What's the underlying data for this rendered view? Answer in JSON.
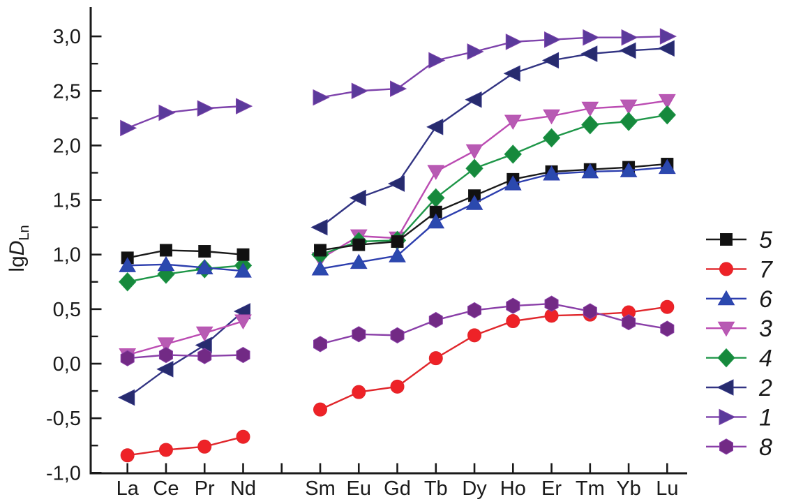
{
  "figure": {
    "background": "#ffffff"
  },
  "chart_data": {
    "type": "line",
    "title": "",
    "ylabel": {
      "prefix": "lg",
      "symbol": "D",
      "subscript": "Ln"
    },
    "xlabel": "",
    "categories": [
      "La",
      "Ce",
      "Pr",
      "Nd",
      "Sm",
      "Eu",
      "Gd",
      "Tb",
      "Dy",
      "Ho",
      "Er",
      "Tm",
      "Yb",
      "Lu"
    ],
    "category_slots": [
      1,
      2,
      3,
      4,
      6,
      7,
      8,
      9,
      10,
      11,
      12,
      13,
      14,
      15
    ],
    "gap_slot": 5,
    "ylim": [
      -1.0,
      3.27
    ],
    "ytick_values": [
      3.0,
      2.5,
      2.0,
      1.5,
      1.0,
      0.5,
      0.0,
      -0.5,
      -1.0
    ],
    "ytick_labels": [
      "3,0",
      "2,5",
      "2,0",
      "1,5",
      "1,0",
      "0,5",
      "0,0",
      "-0,5",
      "-1,0"
    ],
    "yminor_tick_values": [
      2.75,
      2.25,
      1.75,
      1.25,
      0.75,
      0.25,
      -0.25,
      -0.75
    ],
    "grid": "off",
    "legend_position": "right",
    "legend_order": [
      "5",
      "7",
      "6",
      "3",
      "4",
      "2",
      "1",
      "8"
    ],
    "series": [
      {
        "id": "5",
        "marker": "square",
        "line_color": "#1a1a1a",
        "fill_color": "#111111",
        "values": [
          0.97,
          1.04,
          1.03,
          1.0,
          1.04,
          1.09,
          1.12,
          1.39,
          1.54,
          1.69,
          1.76,
          1.78,
          1.8,
          1.83
        ]
      },
      {
        "id": "7",
        "marker": "circle",
        "line_color": "#e0262b",
        "fill_color": "#ee2227",
        "values": [
          -0.84,
          -0.79,
          -0.76,
          -0.67,
          -0.42,
          -0.26,
          -0.21,
          0.05,
          0.26,
          0.39,
          0.44,
          0.45,
          0.47,
          0.52
        ]
      },
      {
        "id": "6",
        "marker": "triangle-up",
        "line_color": "#2c3eae",
        "fill_color": "#2b49ae",
        "values": [
          0.9,
          0.91,
          0.88,
          0.85,
          0.87,
          0.93,
          0.99,
          1.3,
          1.47,
          1.65,
          1.74,
          1.76,
          1.77,
          1.8
        ]
      },
      {
        "id": "3",
        "marker": "triangle-down",
        "line_color": "#bb4bb2",
        "fill_color": "#b75bb3",
        "values": [
          0.08,
          0.18,
          0.28,
          0.39,
          0.96,
          1.17,
          1.15,
          1.76,
          1.95,
          2.22,
          2.27,
          2.34,
          2.36,
          2.41
        ]
      },
      {
        "id": "4",
        "marker": "diamond",
        "line_color": "#1e9648",
        "fill_color": "#16893c",
        "values": [
          0.75,
          0.82,
          0.87,
          0.9,
          1.0,
          1.12,
          1.13,
          1.52,
          1.79,
          1.92,
          2.07,
          2.19,
          2.22,
          2.28
        ]
      },
      {
        "id": "2",
        "marker": "triangle-left",
        "line_color": "#323483",
        "fill_color": "#272b6e",
        "values": [
          -0.31,
          -0.05,
          0.17,
          0.48,
          1.25,
          1.52,
          1.65,
          2.17,
          2.42,
          2.66,
          2.78,
          2.84,
          2.87,
          2.89
        ]
      },
      {
        "id": "1",
        "marker": "triangle-right",
        "line_color": "#7d42ab",
        "fill_color": "#5b3a9b",
        "values": [
          2.16,
          2.3,
          2.34,
          2.36,
          2.44,
          2.5,
          2.52,
          2.78,
          2.86,
          2.95,
          2.97,
          2.99,
          2.99,
          3.0
        ]
      },
      {
        "id": "8",
        "marker": "hexagon",
        "line_color": "#8a3fa8",
        "fill_color": "#722a85",
        "values": [
          0.05,
          0.08,
          0.07,
          0.08,
          0.18,
          0.27,
          0.26,
          0.4,
          0.49,
          0.53,
          0.55,
          0.48,
          0.38,
          0.32
        ]
      }
    ]
  }
}
